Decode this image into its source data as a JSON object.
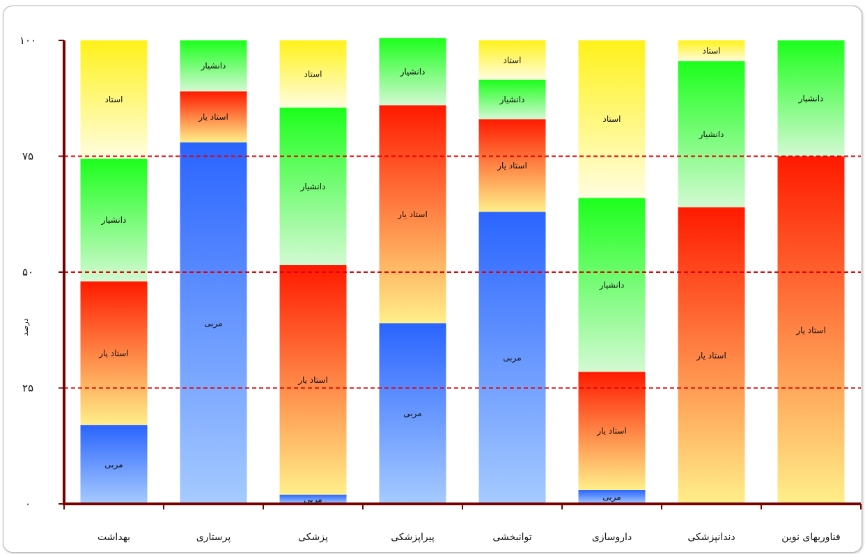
{
  "chart_data": {
    "type": "bar",
    "stacked": true,
    "percent_stacked": true,
    "orientation": "vertical",
    "ylabel": "درصد",
    "ylim": [
      0,
      100
    ],
    "yticks": [
      "۰",
      "۲۵",
      "۵۰",
      "۷۵",
      "۱۰۰"
    ],
    "ytick_values": [
      0,
      25,
      50,
      75,
      100
    ],
    "grid": "horizontal dashed red at 25, 50, 75",
    "categories": [
      "بهداشت",
      "پرستاری",
      "پزشکی",
      "پیراپزشکی",
      "توانبخشی",
      "داروسازی",
      "دندانپزشکی",
      "فناوریهای نوین"
    ],
    "series": [
      {
        "name": "مربی",
        "values": [
          17,
          78,
          2,
          39,
          63,
          3,
          0,
          0
        ],
        "color_top": "#2a64ff",
        "color_bottom": "#a6cbff"
      },
      {
        "name": "استادیار",
        "values": [
          31,
          11,
          49.5,
          47,
          20,
          25.5,
          64,
          75
        ],
        "color_top": "#ff1a00",
        "color_bottom": "#ffef8a"
      },
      {
        "name": "دانشیار",
        "values": [
          26.5,
          11,
          34,
          14.5,
          8.5,
          37.5,
          31.5,
          25
        ],
        "color_top": "#1cff1c",
        "color_bottom": "#d3f9d3"
      },
      {
        "name": "استاد",
        "values": [
          25.5,
          0,
          14.5,
          0,
          8.5,
          34,
          4.5,
          0
        ],
        "color_top": "#fff21a",
        "color_bottom": "#fffde0"
      }
    ],
    "segment_labels": [
      [
        "مربی",
        "استاد یار",
        "دانشیار",
        "استاد"
      ],
      [
        "مربی",
        "استاد یار",
        "دانشیار",
        ""
      ],
      [
        "مربی",
        "استاد یار",
        "دانشیار",
        "استاد"
      ],
      [
        "مربی",
        "استاد یار",
        "دانشیار",
        ""
      ],
      [
        "مربی",
        "استاد یار",
        "دانشیار",
        "استاد"
      ],
      [
        "مربی",
        "استاد یار",
        "دانشیار",
        "استاد"
      ],
      [
        "",
        "استاد یار",
        "دانشیار",
        "استاد"
      ],
      [
        "",
        "استاد یار",
        "دانشیار",
        ""
      ]
    ],
    "axis_color": "#7a0000",
    "grid_color": "#e00000"
  }
}
